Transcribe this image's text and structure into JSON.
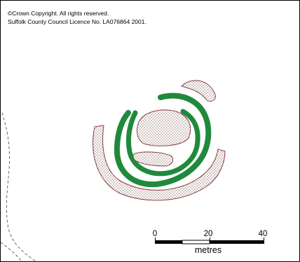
{
  "copyright": {
    "line1": "©Crown Copyright.  All rights reserved.",
    "line2": "Suffolk County Council Licence No. LA076864 2001."
  },
  "scale_bar": {
    "ticks": [
      "0",
      "20",
      "40"
    ],
    "units": "metres"
  },
  "colors": {
    "ditch": "#1f8a3b",
    "bank_outline": "#8b3f3f",
    "bank_stipple": "#6b3b3b",
    "boundary": "#555555"
  }
}
